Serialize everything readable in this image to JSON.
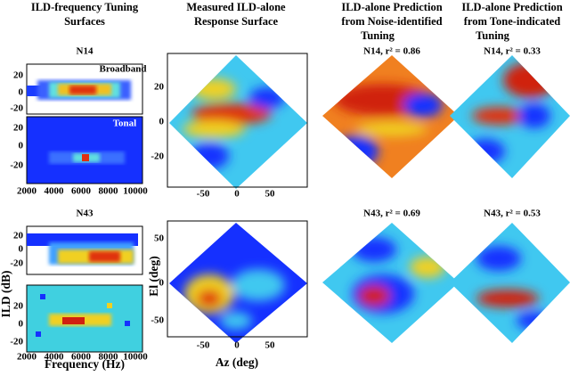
{
  "columns": [
    {
      "title": [
        "ILD-frequency Tuning",
        "Surfaces"
      ]
    },
    {
      "title": [
        "Measured ILD-alone",
        "Response Surface"
      ]
    },
    {
      "title": [
        "ILD-alone Prediction",
        "from Noise-identified",
        "Tuning"
      ]
    },
    {
      "title": [
        "ILD-alone Prediction",
        "from Tone-indicated",
        "Tuning"
      ]
    }
  ],
  "rows": [
    {
      "neuron": "N14",
      "broadband_label": "Broadband",
      "tonal_label": "Tonal",
      "noise_prediction": "N14, r² = 0.86",
      "tone_prediction": "N14, r² = 0.33"
    },
    {
      "neuron": "N43",
      "noise_prediction": "N43, r² = 0.69",
      "tone_prediction": "N43, r² = 0.53"
    }
  ],
  "axes": {
    "frequency_ticks": [
      "2000",
      "4000",
      "6000",
      "8000",
      "10000"
    ],
    "ild_ticks": [
      "20",
      "0",
      "-20"
    ],
    "el_ticks_top": [
      "20",
      "0",
      "-20"
    ],
    "el_ticks_bottom": [
      "50",
      "0",
      "-50"
    ],
    "az_ticks": [
      "-50",
      "0",
      "50"
    ],
    "ild_label": "ILD (dB)",
    "frequency_label": "Frequency (Hz)",
    "el_label": "El (deg)",
    "az_label": "Az (deg)"
  }
}
